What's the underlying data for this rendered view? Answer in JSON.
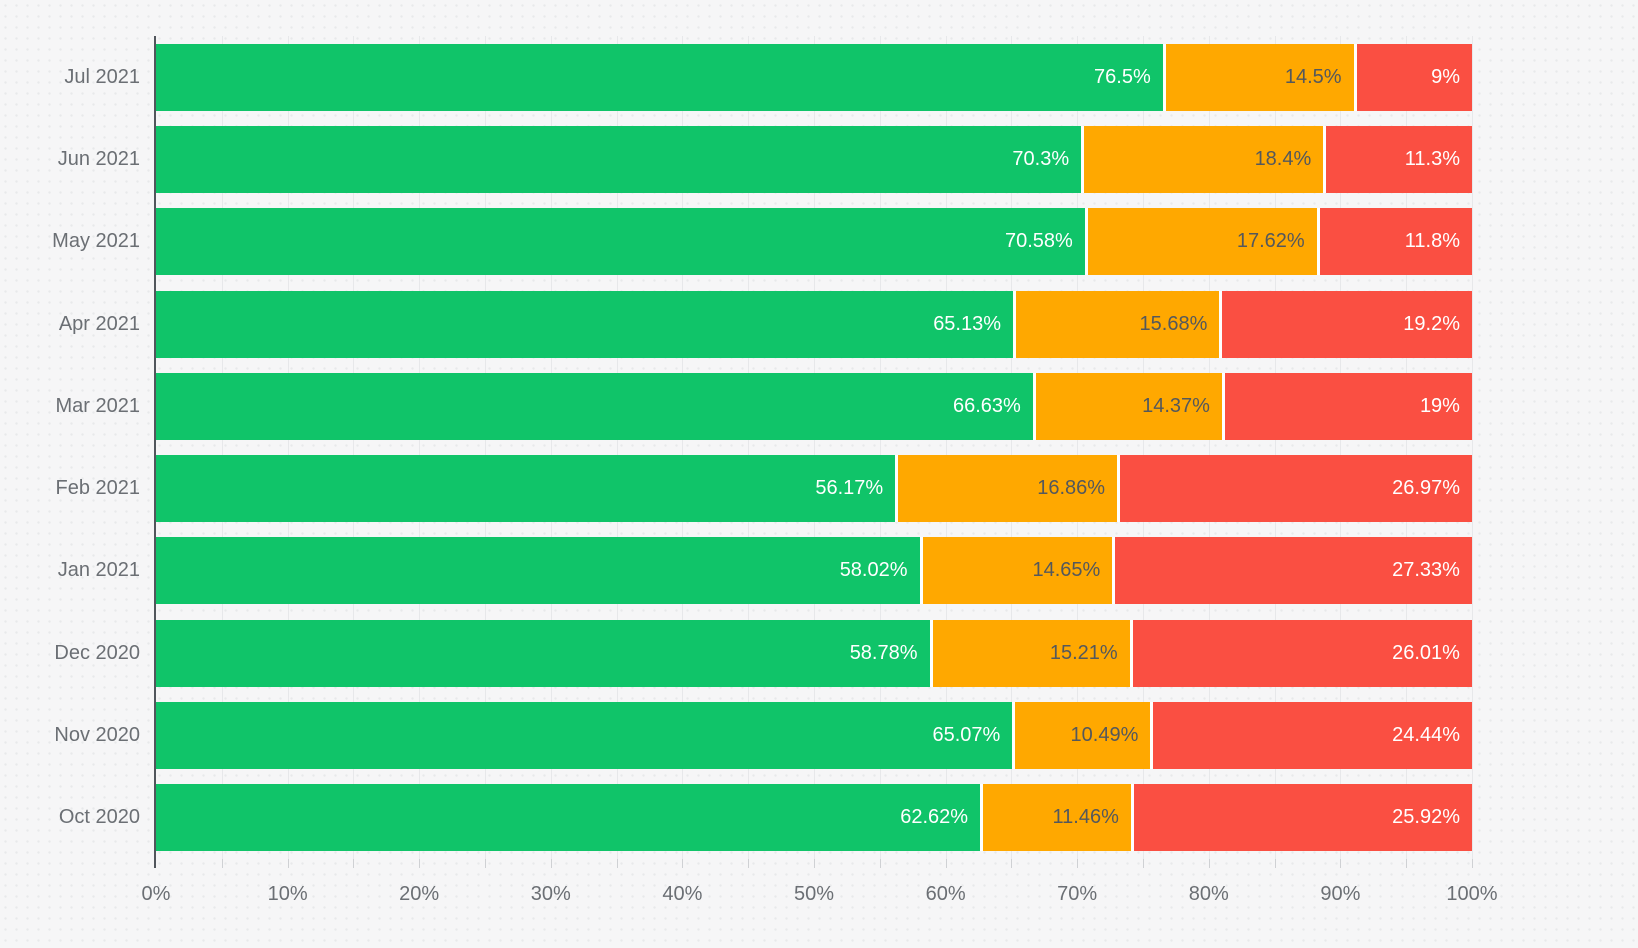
{
  "chart_data": {
    "type": "bar",
    "orientation": "horizontal",
    "stacked": true,
    "unit": "%",
    "categories": [
      "Jul 2021",
      "Jun 2021",
      "May 2021",
      "Apr 2021",
      "Mar 2021",
      "Feb 2021",
      "Jan 2021",
      "Dec 2020",
      "Nov 2020",
      "Oct 2020"
    ],
    "series": [
      {
        "name": "green",
        "color": "#10c469",
        "values": [
          76.5,
          70.3,
          70.58,
          65.13,
          66.63,
          56.17,
          58.02,
          58.78,
          65.07,
          62.62
        ]
      },
      {
        "name": "orange",
        "color": "#ffa800",
        "values": [
          14.5,
          18.4,
          17.62,
          15.68,
          14.37,
          16.86,
          14.65,
          15.21,
          10.49,
          11.46
        ]
      },
      {
        "name": "red",
        "color": "#fa4f42",
        "values": [
          9,
          11.3,
          11.8,
          19.2,
          19,
          26.97,
          27.33,
          26.01,
          24.44,
          25.92
        ]
      }
    ],
    "data_labels": [
      [
        "76.5%",
        "14.5%",
        "9%"
      ],
      [
        "70.3%",
        "18.4%",
        "11.3%"
      ],
      [
        "70.58%",
        "17.62%",
        "11.8%"
      ],
      [
        "65.13%",
        "15.68%",
        "19.2%"
      ],
      [
        "66.63%",
        "14.37%",
        "19%"
      ],
      [
        "56.17%",
        "16.86%",
        "26.97%"
      ],
      [
        "58.02%",
        "14.65%",
        "27.33%"
      ],
      [
        "58.78%",
        "15.21%",
        "26.01%"
      ],
      [
        "65.07%",
        "10.49%",
        "24.44%"
      ],
      [
        "62.62%",
        "11.46%",
        "25.92%"
      ]
    ],
    "xlim": [
      0,
      100
    ],
    "x_tick_labels": [
      "0%",
      "10%",
      "20%",
      "30%",
      "40%",
      "50%",
      "60%",
      "70%",
      "80%",
      "90%",
      "100%"
    ],
    "x_tick_step_pct": 10,
    "minor_grid_step_pct": 5,
    "grid": true,
    "legend": false,
    "title": ""
  },
  "style": {
    "background": "#f6f6f7",
    "grid_color": "#e7e8ea",
    "axis_line_color": "#51565c",
    "tick_color": "#cfd1d4",
    "axis_label_color": "#6b6f74",
    "label_on_green": "#ffffff",
    "label_on_orange": "#54585c",
    "label_on_red": "#ffffff"
  }
}
